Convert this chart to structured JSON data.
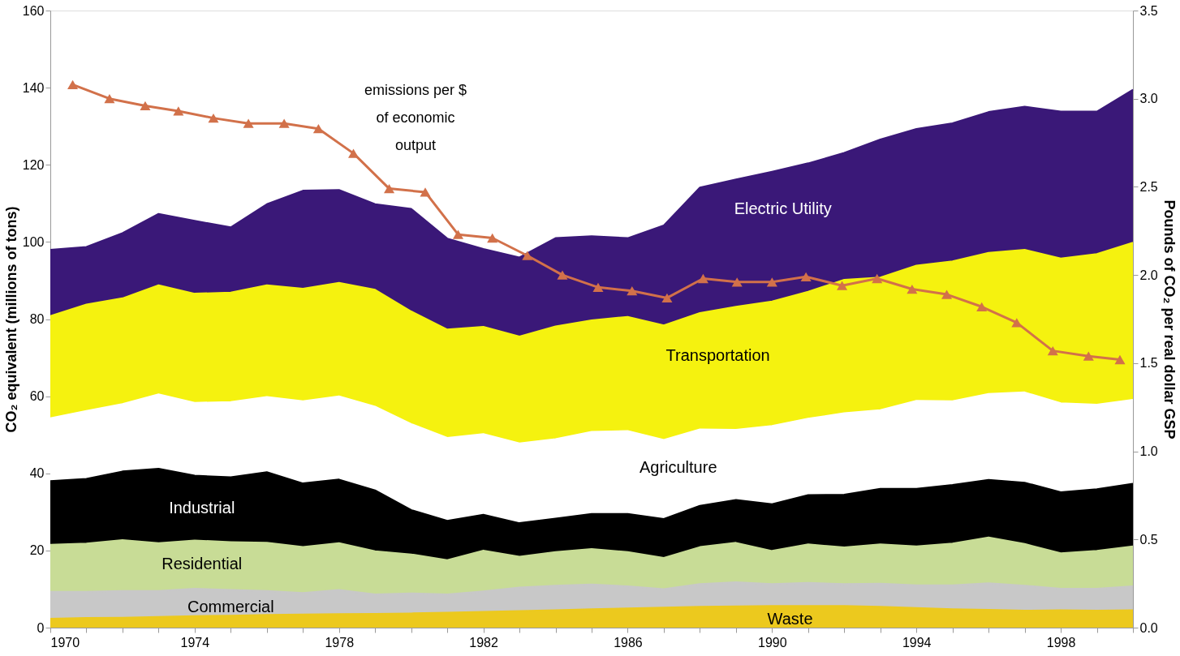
{
  "chart_data": {
    "type": "area",
    "stacked": true,
    "ylabel": "CO₂ equivalent (millions of tons)",
    "y2label": "Pounds of CO₂ per real dollar GSP",
    "x": [
      1970,
      1971,
      1972,
      1973,
      1974,
      1975,
      1976,
      1977,
      1978,
      1979,
      1980,
      1981,
      1982,
      1983,
      1984,
      1985,
      1986,
      1987,
      1988,
      1989,
      1990,
      1991,
      1992,
      1993,
      1994,
      1995,
      1996,
      1997,
      1998,
      1999,
      2000
    ],
    "xlim": [
      1970,
      2000
    ],
    "xticks": [
      1970,
      {
        "value": 1971,
        "label": null
      },
      {
        "value": 1972,
        "label": null
      },
      {
        "value": 1973,
        "label": null
      },
      1974,
      {
        "value": 1975,
        "label": null
      },
      {
        "value": 1976,
        "label": null
      },
      {
        "value": 1977,
        "label": null
      },
      1978,
      {
        "value": 1979,
        "label": null
      },
      {
        "value": 1980,
        "label": null
      },
      {
        "value": 1981,
        "label": null
      },
      1982,
      {
        "value": 1983,
        "label": null
      },
      {
        "value": 1984,
        "label": null
      },
      {
        "value": 1985,
        "label": null
      },
      1986,
      {
        "value": 1987,
        "label": null
      },
      {
        "value": 1988,
        "label": null
      },
      {
        "value": 1989,
        "label": null
      },
      1990,
      {
        "value": 1991,
        "label": null
      },
      {
        "value": 1992,
        "label": null
      },
      {
        "value": 1993,
        "label": null
      },
      1994,
      {
        "value": 1995,
        "label": null
      },
      {
        "value": 1996,
        "label": null
      },
      {
        "value": 1997,
        "label": null
      },
      1998,
      {
        "value": 1999,
        "label": null
      },
      {
        "value": 2000,
        "label": null
      }
    ],
    "ylim": [
      0,
      160
    ],
    "yticks": [
      0,
      20,
      40,
      60,
      80,
      100,
      120,
      140,
      160
    ],
    "y2lim": [
      0,
      3.5
    ],
    "y2ticks": [
      {
        "value": 0,
        "label": "0.0"
      },
      0.5,
      {
        "value": 1,
        "label": "1.0"
      },
      1.5,
      {
        "value": 2,
        "label": "2.0"
      },
      2.5,
      {
        "value": 3,
        "label": "3.0"
      },
      3.5
    ],
    "grid": false,
    "legend": false,
    "annotations": [
      "emissions per $\nof economic\noutput"
    ],
    "series": [
      {
        "name": "Waste",
        "color": "#ecc91e",
        "values": [
          2.3,
          2.5,
          2.6,
          2.8,
          3.0,
          3.1,
          3.3,
          3.4,
          3.5,
          3.6,
          3.7,
          3.9,
          4.1,
          4.3,
          4.5,
          4.8,
          5.0,
          5.2,
          5.4,
          5.5,
          5.6,
          5.6,
          5.6,
          5.4,
          5.1,
          4.8,
          4.6,
          4.4,
          4.5,
          4.4,
          4.5
        ]
      },
      {
        "name": "Commercial",
        "color": "#c8c8c8",
        "values": [
          7.0,
          6.8,
          6.9,
          6.7,
          7.1,
          6.7,
          6.2,
          5.6,
          6.3,
          5.0,
          5.2,
          4.7,
          5.3,
          6.1,
          6.4,
          6.4,
          5.7,
          4.8,
          5.9,
          6.3,
          5.7,
          6.0,
          5.7,
          6.0,
          5.9,
          6.2,
          6.9,
          6.5,
          5.6,
          5.7,
          6.2
        ]
      },
      {
        "name": "Residential",
        "color": "#c8dc96",
        "values": [
          12.2,
          12.5,
          13.2,
          12.4,
          12.5,
          12.4,
          12.5,
          11.9,
          12.1,
          11.2,
          10.1,
          8.9,
          10.6,
          8.0,
          8.7,
          9.2,
          8.9,
          8.1,
          9.6,
          10.2,
          8.6,
          10.0,
          9.5,
          10.2,
          10.1,
          10.8,
          11.9,
          10.8,
          9.2,
          9.8,
          10.4
        ]
      },
      {
        "name": "Industrial",
        "color": "#000000",
        "values": [
          16.5,
          16.8,
          17.8,
          19.3,
          16.8,
          16.8,
          18.3,
          16.5,
          16.5,
          15.8,
          11.5,
          10.2,
          9.3,
          8.7,
          8.7,
          9.1,
          9.9,
          10.1,
          10.7,
          11.1,
          12.1,
          12.8,
          13.7,
          14.4,
          14.9,
          15.2,
          14.9,
          15.9,
          15.8,
          16.0,
          16.2
        ]
      },
      {
        "name": "Agriculture",
        "color": "#ffffff",
        "values": [
          16.3,
          17.6,
          17.5,
          19.3,
          18.9,
          19.5,
          19.5,
          21.3,
          21.6,
          21.7,
          22.3,
          21.5,
          20.9,
          20.7,
          20.6,
          21.3,
          21.5,
          20.5,
          19.8,
          18.2,
          20.3,
          19.8,
          21.1,
          20.4,
          22.8,
          21.7,
          22.3,
          23.4,
          23.1,
          21.9,
          21.8
        ]
      },
      {
        "name": "Transportation",
        "color": "#f5f20f",
        "values": [
          26.5,
          27.6,
          27.4,
          28.3,
          28.3,
          28.4,
          29.0,
          29.2,
          29.4,
          30.3,
          29.2,
          28.1,
          27.8,
          27.7,
          29.2,
          28.9,
          29.6,
          29.7,
          30.2,
          31.9,
          32.3,
          32.9,
          34.6,
          34.4,
          35.1,
          36.3,
          36.6,
          37.0,
          37.5,
          39.1,
          40.7
        ]
      },
      {
        "name": "Electric Utility",
        "color": "#3a1878",
        "values": [
          17.2,
          14.9,
          16.9,
          18.5,
          18.9,
          16.9,
          21.0,
          25.4,
          24.1,
          22.2,
          26.6,
          23.6,
          20.2,
          20.5,
          22.9,
          21.8,
          20.4,
          25.9,
          32.5,
          33.0,
          33.6,
          33.3,
          32.9,
          35.8,
          35.4,
          35.8,
          36.5,
          37.1,
          38.1,
          36.9,
          39.7
        ]
      },
      {
        "type": "line",
        "axis": "y2",
        "color": "#d2714a",
        "marker": "triangle",
        "x": [
          1970.62,
          1971.64,
          1972.63,
          1973.55,
          1974.52,
          1975.49,
          1976.48,
          1977.43,
          1978.4,
          1979.39,
          1980.39,
          1981.3,
          1982.25,
          1983.22,
          1984.19,
          1985.18,
          1986.12,
          1987.09,
          1988.09,
          1989.03,
          1990.0,
          1990.94,
          1991.94,
          1992.91,
          1993.88,
          1994.84,
          1995.81,
          1996.78,
          1997.78,
          1998.77,
          1999.64
        ],
        "values": [
          3.08,
          3.0,
          2.96,
          2.93,
          2.89,
          2.86,
          2.86,
          2.83,
          2.69,
          2.49,
          2.47,
          2.23,
          2.21,
          2.11,
          2.0,
          1.93,
          1.91,
          1.87,
          1.98,
          1.96,
          1.96,
          1.99,
          1.94,
          1.98,
          1.92,
          1.89,
          1.82,
          1.73,
          1.57,
          1.54,
          1.52
        ]
      }
    ]
  }
}
